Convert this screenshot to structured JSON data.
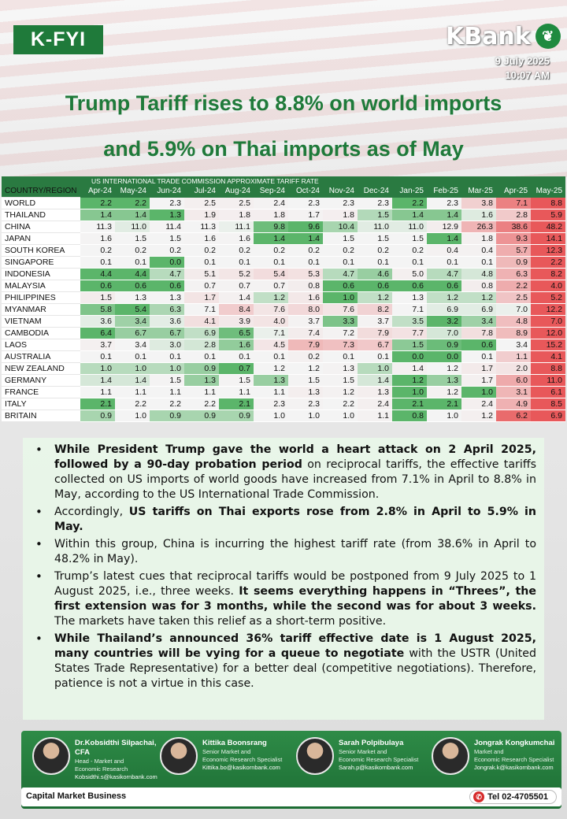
{
  "header": {
    "badge": "K-FYI",
    "logo_text": "KBank",
    "logo_icon": "kbank-leaf-icon",
    "date": "9 July 2025",
    "time": "10:07 AM",
    "headline_line1": "Trump Tariff rises to 8.8% on world imports",
    "headline_line2": "and 5.9% on Thai imports as of May"
  },
  "table": {
    "super_header": "US INTERNATIONAL TRADE COMMISSION APPROXIMATE TARIFF RATE",
    "region_header": "COUNTRY/REGION",
    "months": [
      "Apr-24",
      "May-24",
      "Jun-24",
      "Jul-24",
      "Aug-24",
      "Sep-24",
      "Oct-24",
      "Nov-24",
      "Dec-24",
      "Jan-25",
      "Feb-25",
      "Mar-25",
      "Apr-25",
      "May-25"
    ],
    "rows": [
      {
        "name": "WORLD",
        "values": [
          "2.2",
          "2.2",
          "2.3",
          "2.5",
          "2.5",
          "2.4",
          "2.3",
          "2.3",
          "2.3",
          "2.2",
          "2.3",
          "3.8",
          "7.1",
          "8.8"
        ]
      },
      {
        "name": "THAILAND",
        "values": [
          "1.4",
          "1.4",
          "1.3",
          "1.9",
          "1.8",
          "1.8",
          "1.7",
          "1.8",
          "1.5",
          "1.4",
          "1.4",
          "1.6",
          "2.8",
          "5.9"
        ]
      },
      {
        "name": "CHINA",
        "values": [
          "11.3",
          "11.0",
          "11.4",
          "11.3",
          "11.1",
          "9.8",
          "9.6",
          "10.4",
          "11.0",
          "11.0",
          "12.9",
          "26.3",
          "38.6",
          "48.2"
        ]
      },
      {
        "name": "JAPAN",
        "values": [
          "1.6",
          "1.5",
          "1.5",
          "1.6",
          "1.6",
          "1.4",
          "1.4",
          "1.5",
          "1.5",
          "1.5",
          "1.4",
          "1.8",
          "9.3",
          "14.1"
        ]
      },
      {
        "name": "SOUTH KOREA",
        "values": [
          "0.2",
          "0.2",
          "0.2",
          "0.2",
          "0.2",
          "0.2",
          "0.2",
          "0.2",
          "0.2",
          "0.2",
          "0.4",
          "0.4",
          "5.7",
          "12.3"
        ]
      },
      {
        "name": "SINGAPORE",
        "values": [
          "0.1",
          "0.1",
          "0.0",
          "0.1",
          "0.1",
          "0.1",
          "0.1",
          "0.1",
          "0.1",
          "0.1",
          "0.1",
          "0.1",
          "0.9",
          "2.2"
        ]
      },
      {
        "name": "INDONESIA",
        "values": [
          "4.4",
          "4.4",
          "4.7",
          "5.1",
          "5.2",
          "5.4",
          "5.3",
          "4.7",
          "4.6",
          "5.0",
          "4.7",
          "4.8",
          "6.3",
          "8.2"
        ]
      },
      {
        "name": "MALAYSIA",
        "values": [
          "0.6",
          "0.6",
          "0.6",
          "0.7",
          "0.7",
          "0.7",
          "0.8",
          "0.6",
          "0.6",
          "0.6",
          "0.6",
          "0.8",
          "2.2",
          "4.0"
        ]
      },
      {
        "name": "PHILIPPINES",
        "values": [
          "1.5",
          "1.3",
          "1.3",
          "1.7",
          "1.4",
          "1.2",
          "1.6",
          "1.0",
          "1.2",
          "1.3",
          "1.2",
          "1.2",
          "2.5",
          "5.2"
        ]
      },
      {
        "name": "MYANMAR",
        "values": [
          "5.8",
          "5.4",
          "6.3",
          "7.1",
          "8.4",
          "7.6",
          "8.0",
          "7.6",
          "8.2",
          "7.1",
          "6.9",
          "6.9",
          "7.0",
          "12.2"
        ]
      },
      {
        "name": "VIETNAM",
        "values": [
          "3.6",
          "3.4",
          "3.6",
          "4.1",
          "3.9",
          "4.0",
          "3.7",
          "3.3",
          "3.7",
          "3.5",
          "3.2",
          "3.4",
          "4.8",
          "7.0"
        ]
      },
      {
        "name": "CAMBODIA",
        "values": [
          "6.4",
          "6.7",
          "6.7",
          "6.9",
          "6.5",
          "7.1",
          "7.4",
          "7.2",
          "7.9",
          "7.7",
          "7.0",
          "7.8",
          "8.9",
          "12.0"
        ]
      },
      {
        "name": "LAOS",
        "values": [
          "3.7",
          "3.4",
          "3.0",
          "2.8",
          "1.6",
          "4.5",
          "7.9",
          "7.3",
          "6.7",
          "1.5",
          "0.9",
          "0.6",
          "3.4",
          "15.2"
        ]
      },
      {
        "name": "AUSTRALIA",
        "values": [
          "0.1",
          "0.1",
          "0.1",
          "0.1",
          "0.1",
          "0.1",
          "0.2",
          "0.1",
          "0.1",
          "0.0",
          "0.0",
          "0.1",
          "1.1",
          "4.1"
        ]
      },
      {
        "name": "NEW ZEALAND",
        "values": [
          "1.0",
          "1.0",
          "1.0",
          "0.9",
          "0.7",
          "1.2",
          "1.2",
          "1.3",
          "1.0",
          "1.4",
          "1.2",
          "1.7",
          "2.0",
          "8.8"
        ]
      },
      {
        "name": "GERMANY",
        "values": [
          "1.4",
          "1.4",
          "1.5",
          "1.3",
          "1.5",
          "1.3",
          "1.5",
          "1.5",
          "1.4",
          "1.2",
          "1.3",
          "1.7",
          "6.0",
          "11.0"
        ]
      },
      {
        "name": "FRANCE",
        "values": [
          "1.1",
          "1.1",
          "1.1",
          "1.1",
          "1.1",
          "1.1",
          "1.3",
          "1.2",
          "1.3",
          "1.0",
          "1.2",
          "1.0",
          "3.1",
          "6.1"
        ]
      },
      {
        "name": "ITALY",
        "values": [
          "2.1",
          "2.2",
          "2.2",
          "2.2",
          "2.1",
          "2.3",
          "2.3",
          "2.2",
          "2.4",
          "2.1",
          "2.1",
          "2.4",
          "4.9",
          "8.5"
        ]
      },
      {
        "name": "BRITAIN",
        "values": [
          "0.9",
          "1.0",
          "0.9",
          "0.9",
          "0.9",
          "1.0",
          "1.0",
          "1.0",
          "1.1",
          "0.8",
          "1.0",
          "1.2",
          "6.2",
          "6.9"
        ]
      }
    ],
    "colors": {
      "low": "#5bb56a",
      "mid": "#f4f4f4",
      "high": "#e8585a"
    }
  },
  "bullets": [
    {
      "bold1": "While President Trump gave the world a heart attack on 2 April 2025, followed by a 90-day probation period",
      "text1": " on reciprocal tariffs, the effective tariffs collected on US imports of world goods have increased from 7.1% in April to 8.8% in May, according to the US International Trade Commission.",
      "bold2": "",
      "text2": ""
    },
    {
      "bold1": "",
      "text1": "Accordingly, ",
      "bold2": "US tariffs on Thai exports rose from 2.8% in April to 5.9% in May.",
      "text2": ""
    },
    {
      "bold1": "",
      "text1": "Within this group, China is incurring the highest tariff rate (from 38.6% in April to 48.2% in May).",
      "bold2": "",
      "text2": ""
    },
    {
      "bold1": "",
      "text1": "Trump’s latest cues that reciprocal tariffs would be postponed from 9 July 2025 to 1 August 2025, i.e., three weeks. ",
      "bold2": "It seems everything happens in “Threes”, the first extension was for 3 months, while the second was for about 3 weeks.",
      "text2": " The markets have taken this relief as a short-term positive."
    },
    {
      "bold1": "While Thailand’s announced 36% tariff effective date is 1 August 2025, many countries will be vying for a queue to negotiate",
      "text1": " with the USTR (United States Trade Representative) for a better deal (competitive negotiations). Therefore, patience is not a virtue in this case.",
      "bold2": "",
      "text2": ""
    }
  ],
  "footer": {
    "team": [
      {
        "name": "Dr.Kobsidthi Silpachai, CFA",
        "role1": "Head - Market and",
        "role2": "Economic Research",
        "email": "Kobsidthi.s@kasikornbank.com"
      },
      {
        "name": "Kittika Boonsrang",
        "role1": "Senior Market and",
        "role2": "Economic Research Specialist",
        "email": "Kittika.bo@kasikornbank.com"
      },
      {
        "name": "Sarah Polpibulaya",
        "role1": "Senior Market and",
        "role2": "Economic Research Specialist",
        "email": "Sarah.p@kasikornbank.com"
      },
      {
        "name": "Jongrak Kongkumchai",
        "role1": "Market and",
        "role2": "Economic Research Specialist",
        "email": "Jongrak.k@kasikornbank.com"
      }
    ],
    "department": "Capital Market Business",
    "phone": "Tel 02-4705501",
    "phone_icon": "phone-icon"
  }
}
